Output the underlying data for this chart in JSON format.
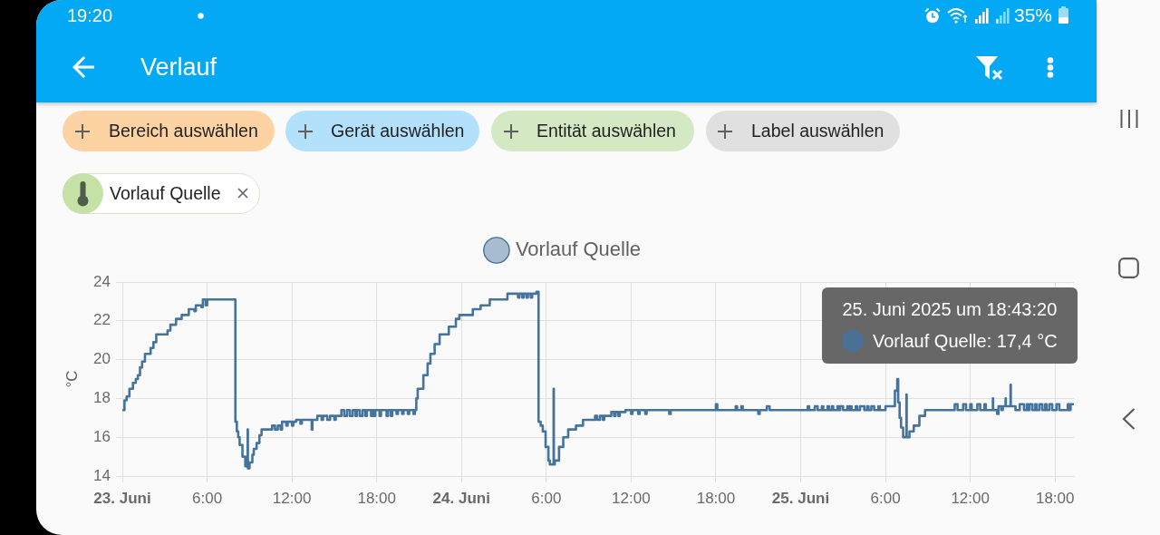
{
  "chart_data": {
    "type": "step",
    "title": "Verlauf",
    "ylabel": "°C",
    "annotations": [
      "19:20",
      "35%",
      "Bereich auswählen",
      "Gerät auswählen",
      "Entität auswählen",
      "Label auswählen",
      "Vorlauf Quelle",
      "25. Juni 2025 um 18:43:20",
      "Vorlauf Quelle: 17,4 °C"
    ],
    "x": [
      "2025-06-23T00:00",
      "2025-06-23T00:09",
      "2025-06-23T00:18",
      "2025-06-23T00:30",
      "2025-06-23T00:45",
      "2025-06-23T00:57",
      "2025-06-23T01:06",
      "2025-06-23T01:15",
      "2025-06-23T01:24",
      "2025-06-23T01:36",
      "2025-06-23T02:00",
      "2025-06-23T02:12",
      "2025-06-23T02:24",
      "2025-06-23T03:12",
      "2025-06-23T03:24",
      "2025-06-23T03:48",
      "2025-06-23T04:12",
      "2025-06-23T04:42",
      "2025-06-23T05:06",
      "2025-06-23T05:12",
      "2025-06-23T05:36",
      "2025-06-23T05:42",
      "2025-06-23T05:54",
      "2025-06-23T06:00",
      "2025-06-23T08:00",
      "2025-06-23T08:06",
      "2025-06-23T08:12",
      "2025-06-23T08:18",
      "2025-06-23T08:30",
      "2025-06-23T08:42",
      "2025-06-23T08:52",
      "2025-06-23T08:53",
      "2025-06-23T09:00",
      "2025-06-23T09:12",
      "2025-06-23T09:18",
      "2025-06-23T09:30",
      "2025-06-23T09:42",
      "2025-06-23T09:51",
      "2025-06-23T10:36",
      "2025-06-23T10:48",
      "2025-06-23T11:00",
      "2025-06-23T11:12",
      "2025-06-23T11:18",
      "2025-06-23T11:36",
      "2025-06-23T11:42",
      "2025-06-23T12:00",
      "2025-06-23T12:06",
      "2025-06-23T12:18",
      "2025-06-23T12:36",
      "2025-06-23T12:42",
      "2025-06-23T13:24",
      "2025-06-23T13:27",
      "2025-06-23T13:48",
      "2025-06-23T14:06",
      "2025-06-23T14:12",
      "2025-06-23T14:30",
      "2025-06-23T14:42",
      "2025-06-23T15:00",
      "2025-06-23T15:06",
      "2025-06-23T15:30",
      "2025-06-23T15:42",
      "2025-06-23T15:54",
      "2025-06-23T16:06",
      "2025-06-23T16:18",
      "2025-06-23T16:30",
      "2025-06-23T16:36",
      "2025-06-23T16:48",
      "2025-06-23T17:00",
      "2025-06-23T17:12",
      "2025-06-23T17:18",
      "2025-06-23T17:36",
      "2025-06-23T17:42",
      "2025-06-23T17:48",
      "2025-06-23T17:54",
      "2025-06-23T18:12",
      "2025-06-23T18:18",
      "2025-06-23T18:42",
      "2025-06-23T18:48",
      "2025-06-23T19:00",
      "2025-06-23T19:06",
      "2025-06-23T19:24",
      "2025-06-23T19:30",
      "2025-06-23T19:48",
      "2025-06-23T19:54",
      "2025-06-23T20:12",
      "2025-06-23T20:18",
      "2025-06-23T20:36",
      "2025-06-23T20:42",
      "2025-06-23T20:48",
      "2025-06-23T20:54",
      "2025-06-23T21:18",
      "2025-06-23T21:36",
      "2025-06-23T21:48",
      "2025-06-23T22:06",
      "2025-06-23T22:27",
      "2025-06-23T23:06",
      "2025-06-23T23:36",
      "2025-06-23T23:51",
      "2025-06-24T00:48",
      "2025-06-24T01:21",
      "2025-06-24T02:00",
      "2025-06-24T03:15",
      "2025-06-24T04:00",
      "2025-06-24T04:06",
      "2025-06-24T04:18",
      "2025-06-24T04:24",
      "2025-06-24T04:36",
      "2025-06-24T04:42",
      "2025-06-24T04:54",
      "2025-06-24T05:00",
      "2025-06-24T05:18",
      "2025-06-24T05:27",
      "2025-06-24T05:36",
      "2025-06-24T05:45",
      "2025-06-24T05:57",
      "2025-06-24T06:09",
      "2025-06-24T06:15",
      "2025-06-24T06:31",
      "2025-06-24T06:32",
      "2025-06-24T06:36",
      "2025-06-24T06:54",
      "2025-06-24T07:12",
      "2025-06-24T07:33",
      "2025-06-24T08:06",
      "2025-06-24T08:36",
      "2025-06-24T09:27",
      "2025-06-24T09:36",
      "2025-06-24T09:48",
      "2025-06-24T10:00",
      "2025-06-24T10:06",
      "2025-06-24T10:36",
      "2025-06-24T10:48",
      "2025-06-24T10:54",
      "2025-06-24T11:06",
      "2025-06-24T11:12",
      "2025-06-24T11:36",
      "2025-06-24T12:00",
      "2025-06-24T12:06",
      "2025-06-24T12:30",
      "2025-06-24T12:36",
      "2025-06-24T13:00",
      "2025-06-24T13:06",
      "2025-06-24T14:42",
      "2025-06-24T14:48",
      "2025-06-24T18:00",
      "2025-06-24T18:06",
      "2025-06-24T19:24",
      "2025-06-24T19:30",
      "2025-06-24T19:48",
      "2025-06-24T19:54",
      "2025-06-24T21:00",
      "2025-06-24T21:06",
      "2025-06-24T21:36",
      "2025-06-24T21:48",
      "2025-06-25T00:30",
      "2025-06-25T00:36",
      "2025-06-25T01:00",
      "2025-06-25T01:12",
      "2025-06-25T01:30",
      "2025-06-25T01:36",
      "2025-06-25T01:54",
      "2025-06-25T02:00",
      "2025-06-25T02:12",
      "2025-06-25T02:18",
      "2025-06-25T02:36",
      "2025-06-25T02:42",
      "2025-06-25T02:48",
      "2025-06-25T03:00",
      "2025-06-25T03:18",
      "2025-06-25T03:24",
      "2025-06-25T03:30",
      "2025-06-25T03:36",
      "2025-06-25T03:54",
      "2025-06-25T04:00",
      "2025-06-25T04:12",
      "2025-06-25T04:30",
      "2025-06-25T04:42",
      "2025-06-25T04:48",
      "2025-06-25T05:00",
      "2025-06-25T05:12",
      "2025-06-25T05:30",
      "2025-06-25T05:36",
      "2025-06-25T06:00",
      "2025-06-25T06:40",
      "2025-06-25T06:50",
      "2025-06-25T06:54",
      "2025-06-25T07:00",
      "2025-06-25T07:06",
      "2025-06-25T07:15",
      "2025-06-25T07:29",
      "2025-06-25T07:30",
      "2025-06-25T07:42",
      "2025-06-25T08:00",
      "2025-06-25T08:24",
      "2025-06-25T08:48",
      "2025-06-25T10:54",
      "2025-06-25T11:06",
      "2025-06-25T11:30",
      "2025-06-25T11:42",
      "2025-06-25T12:00",
      "2025-06-25T12:06",
      "2025-06-25T12:30",
      "2025-06-25T12:42",
      "2025-06-25T13:00",
      "2025-06-25T13:06",
      "2025-06-25T13:36",
      "2025-06-25T13:37",
      "2025-06-25T13:54",
      "2025-06-25T14:00",
      "2025-06-25T14:12",
      "2025-06-25T14:18",
      "2025-06-25T14:30",
      "2025-06-25T14:31",
      "2025-06-25T14:51",
      "2025-06-25T14:52",
      "2025-06-25T15:12",
      "2025-06-25T15:30",
      "2025-06-25T15:48",
      "2025-06-25T16:00",
      "2025-06-25T16:06",
      "2025-06-25T16:12",
      "2025-06-25T16:24",
      "2025-06-25T16:36",
      "2025-06-25T16:42",
      "2025-06-25T16:54",
      "2025-06-25T17:06",
      "2025-06-25T17:18",
      "2025-06-25T17:24",
      "2025-06-25T17:36",
      "2025-06-25T17:48",
      "2025-06-25T18:06",
      "2025-06-25T18:18",
      "2025-06-25T18:43",
      "2025-06-25T18:54",
      "2025-06-25T19:00",
      "2025-06-25T19:06",
      "2025-06-25T19:20"
    ],
    "series": [
      {
        "name": "Vorlauf Quelle",
        "color": "#44739e",
        "values": [
          17.4,
          17.9,
          18.1,
          18.5,
          18.8,
          19.0,
          19.2,
          19.6,
          19.9,
          20.3,
          20.6,
          20.9,
          21.3,
          21.5,
          21.8,
          22.1,
          22.3,
          22.6,
          22.5,
          22.8,
          22.7,
          23.1,
          22.8,
          23.1,
          16.8,
          16.3,
          16.0,
          15.6,
          15.0,
          14.5,
          16.4,
          14.4,
          14.7,
          15.1,
          15.4,
          15.7,
          16.1,
          16.4,
          16.6,
          16.4,
          16.6,
          16.4,
          16.8,
          16.6,
          16.8,
          16.6,
          16.8,
          16.9,
          16.7,
          16.9,
          16.4,
          16.9,
          17.1,
          16.9,
          17.1,
          16.9,
          17.1,
          16.9,
          17.1,
          17.4,
          17.1,
          17.4,
          17.1,
          17.4,
          17.1,
          17.4,
          17.1,
          17.4,
          17.1,
          17.4,
          17.1,
          17.4,
          17.1,
          17.4,
          17.1,
          17.4,
          17.1,
          17.4,
          17.1,
          17.4,
          17.2,
          17.4,
          17.2,
          17.4,
          17.2,
          17.4,
          17.2,
          17.4,
          18.0,
          18.5,
          19.2,
          19.8,
          20.3,
          20.8,
          21.3,
          21.7,
          22.1,
          22.3,
          22.6,
          22.8,
          23.1,
          23.4,
          23.2,
          23.4,
          23.2,
          23.4,
          23.2,
          23.4,
          23.2,
          23.4,
          23.5,
          16.8,
          16.6,
          16.3,
          15.5,
          14.8,
          14.6,
          18.5,
          14.6,
          14.8,
          15.5,
          16.0,
          16.4,
          16.6,
          16.9,
          17.1,
          16.9,
          17.1,
          16.9,
          17.1,
          17.3,
          17.1,
          17.3,
          17.1,
          17.3,
          17.4,
          17.2,
          17.4,
          17.2,
          17.4,
          17.2,
          17.4,
          17.2,
          17.4,
          17.7,
          17.4,
          17.6,
          17.4,
          17.6,
          17.4,
          17.2,
          17.4,
          17.6,
          17.4,
          17.6,
          17.4,
          17.6,
          17.4,
          17.6,
          17.4,
          17.6,
          17.4,
          17.6,
          17.4,
          17.6,
          17.4,
          17.6,
          17.4,
          17.6,
          17.4,
          17.6,
          17.4,
          17.6,
          17.4,
          17.6,
          17.4,
          17.6,
          17.4,
          17.6,
          17.4,
          17.6,
          17.4,
          17.6,
          18.4,
          19.0,
          17.8,
          17.0,
          16.5,
          16.0,
          18.2,
          16.0,
          16.3,
          16.6,
          17.1,
          17.4,
          17.7,
          17.4,
          17.7,
          17.4,
          17.7,
          17.4,
          17.7,
          17.4,
          17.7,
          17.4,
          18.0,
          17.4,
          17.2,
          17.6,
          17.4,
          17.6,
          18.0,
          17.6,
          18.7,
          17.6,
          17.4,
          17.7,
          17.4,
          17.7,
          17.4,
          17.7,
          17.4,
          17.7,
          17.4,
          17.7,
          17.4,
          17.7,
          17.4,
          17.7,
          17.4,
          17.7,
          17.4,
          17.4,
          17.7,
          17.4,
          17.7,
          17.7
        ]
      }
    ],
    "xlim": [
      "2025-06-23T00:00",
      "2025-06-25T19:20"
    ],
    "xticks": [
      {
        "value": "2025-06-23T00:00",
        "label": "23. Juni"
      },
      {
        "value": "2025-06-23T06:00",
        "label": "6:00"
      },
      {
        "value": "2025-06-23T12:00",
        "label": "12:00"
      },
      {
        "value": "2025-06-23T18:00",
        "label": "18:00"
      },
      {
        "value": "2025-06-24T00:00",
        "label": "24. Juni"
      },
      {
        "value": "2025-06-24T06:00",
        "label": "6:00"
      },
      {
        "value": "2025-06-24T12:00",
        "label": "12:00"
      },
      {
        "value": "2025-06-24T18:00",
        "label": "18:00"
      },
      {
        "value": "2025-06-25T00:00",
        "label": "25. Juni"
      },
      {
        "value": "2025-06-25T06:00",
        "label": "6:00"
      },
      {
        "value": "2025-06-25T12:00",
        "label": "12:00"
      },
      {
        "value": "2025-06-25T18:00",
        "label": "18:00"
      }
    ],
    "ylim": [
      14,
      24
    ],
    "yticks": [
      14,
      16,
      18,
      20,
      22,
      24
    ],
    "grid": true,
    "legend": "top",
    "marker": "none"
  }
}
